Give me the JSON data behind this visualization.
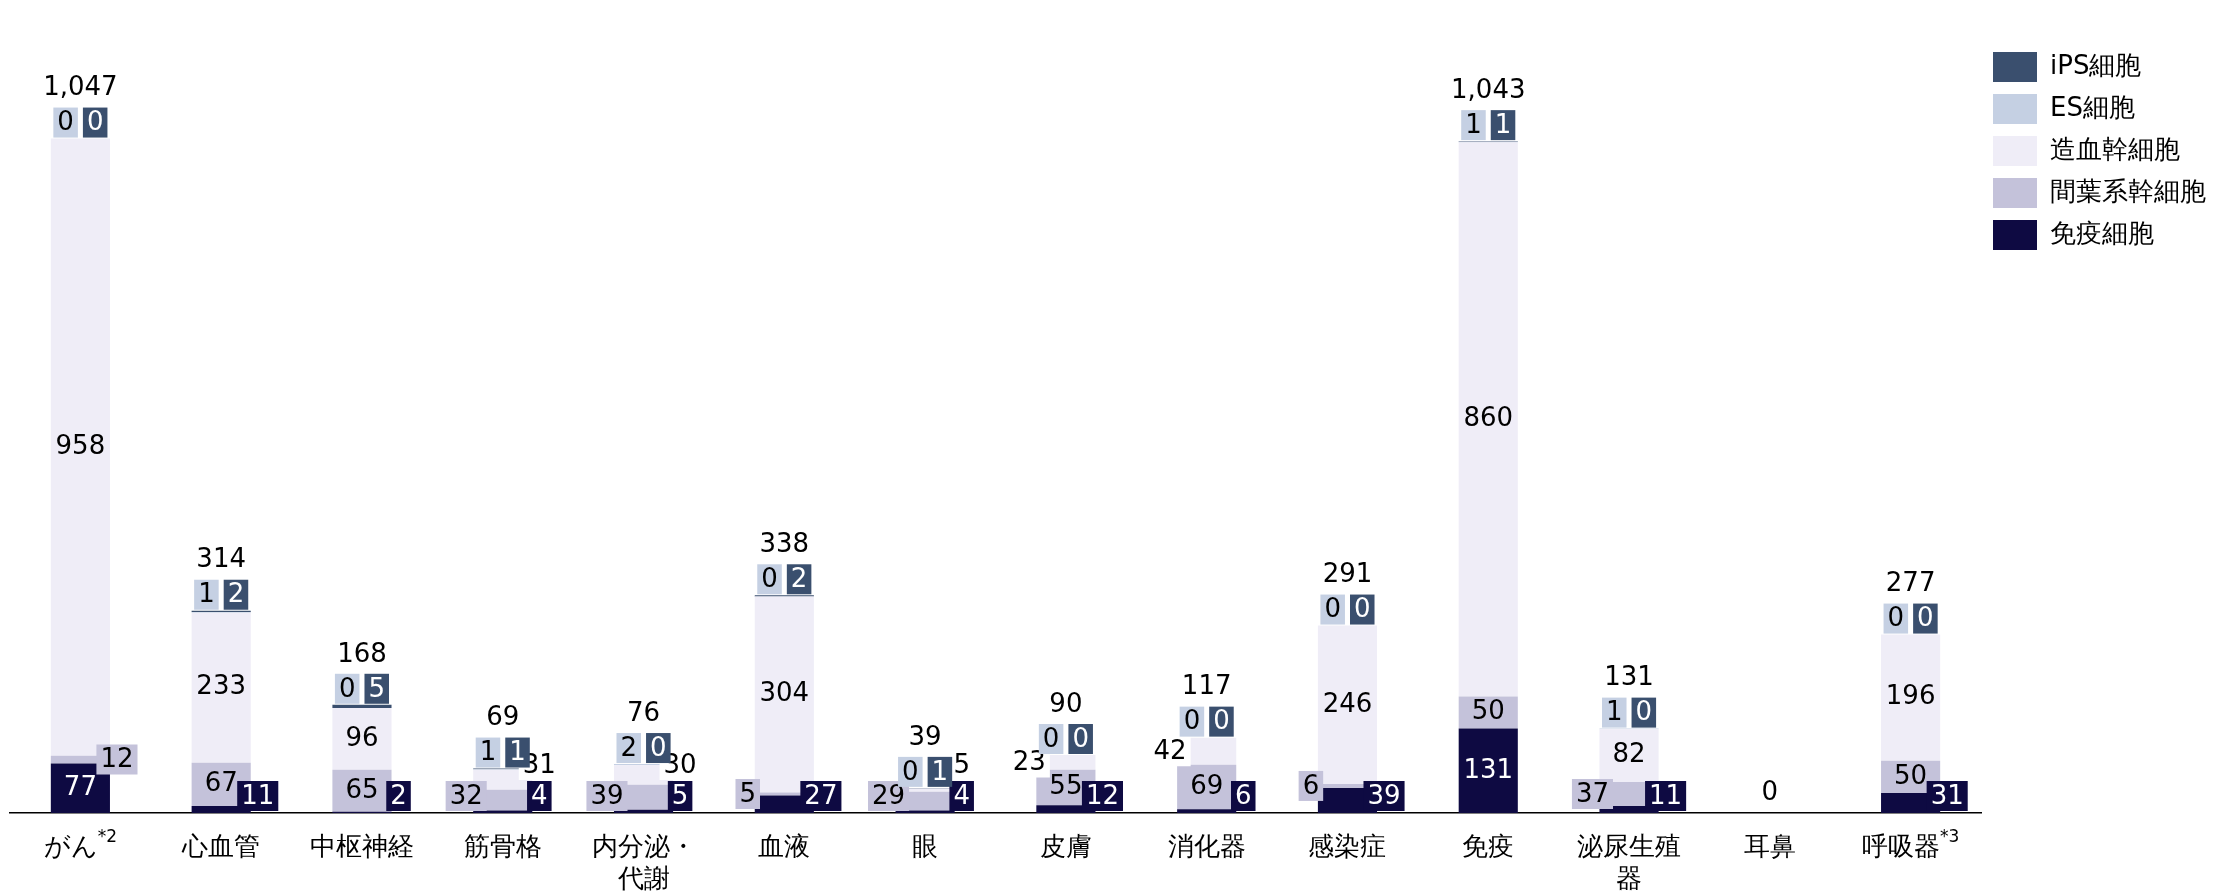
{
  "chart_data": {
    "type": "bar",
    "stacked": true,
    "legend": "top right",
    "grid": false,
    "tick_labels": "x",
    "categories": [
      "がん$^{*2}$",
      "心血管",
      "中枢神経",
      "筋骨格",
      "内分泌・代謝",
      "血液",
      "眼",
      "皮膚",
      "消化器",
      "感染症",
      "免疫",
      "泌尿生殖器",
      "耳鼻",
      "呼吸器$^{*3}$"
    ],
    "series": [
      {
        "name": "免疫細胞",
        "color": "#0e0a42",
        "values": [
          77,
          11,
          2,
          4,
          5,
          27,
          4,
          12,
          6,
          39,
          131,
          11,
          0,
          31
        ],
        "value_labels": [
          "77",
          "11",
          "2",
          "4",
          "5",
          "27",
          "4",
          "12",
          "6",
          "39",
          "131",
          "11",
          null,
          "31"
        ]
      },
      {
        "name": "間葉系幹細胞",
        "color": "#c4c2da",
        "values": [
          12,
          67,
          65,
          32,
          39,
          5,
          29,
          55,
          69,
          6,
          50,
          37,
          0,
          50
        ],
        "value_labels": [
          "12",
          "67",
          "65",
          "32",
          "39",
          "5",
          "29",
          "55",
          "69",
          "6",
          "50",
          "37",
          null,
          "50"
        ]
      },
      {
        "name": "造血幹細胞",
        "color": "#efedf7",
        "values": [
          958,
          233,
          96,
          31,
          30,
          304,
          5,
          23,
          42,
          246,
          860,
          82,
          0,
          196
        ],
        "value_labels": [
          "958",
          "233",
          "96",
          "31",
          "30",
          "304",
          "5",
          "23",
          "42",
          "246",
          "860",
          "82",
          null,
          "196"
        ]
      },
      {
        "name": "ES細胞",
        "color": "#c5d0e3",
        "values": [
          0,
          1,
          0,
          1,
          2,
          0,
          0,
          0,
          0,
          0,
          1,
          1,
          0,
          0
        ],
        "value_labels": [
          "0",
          "1",
          "0",
          "1",
          "2",
          "0",
          "0",
          "0",
          "0",
          "0",
          "1",
          "1",
          null,
          "0"
        ]
      },
      {
        "name": "iPS細胞",
        "color": "#3a4f6e",
        "values": [
          0,
          2,
          5,
          1,
          0,
          2,
          1,
          0,
          0,
          0,
          1,
          0,
          0,
          0
        ],
        "value_labels": [
          "0",
          "2",
          "5",
          "1",
          "0",
          "2",
          "1",
          "0",
          "0",
          "0",
          "1",
          "0",
          null,
          "0"
        ]
      }
    ],
    "totals": [
      "1,047",
      "314",
      "168",
      "69",
      "76",
      "338",
      "39",
      "90",
      "117",
      "291",
      "1,043",
      "131",
      "0",
      "277"
    ]
  }
}
